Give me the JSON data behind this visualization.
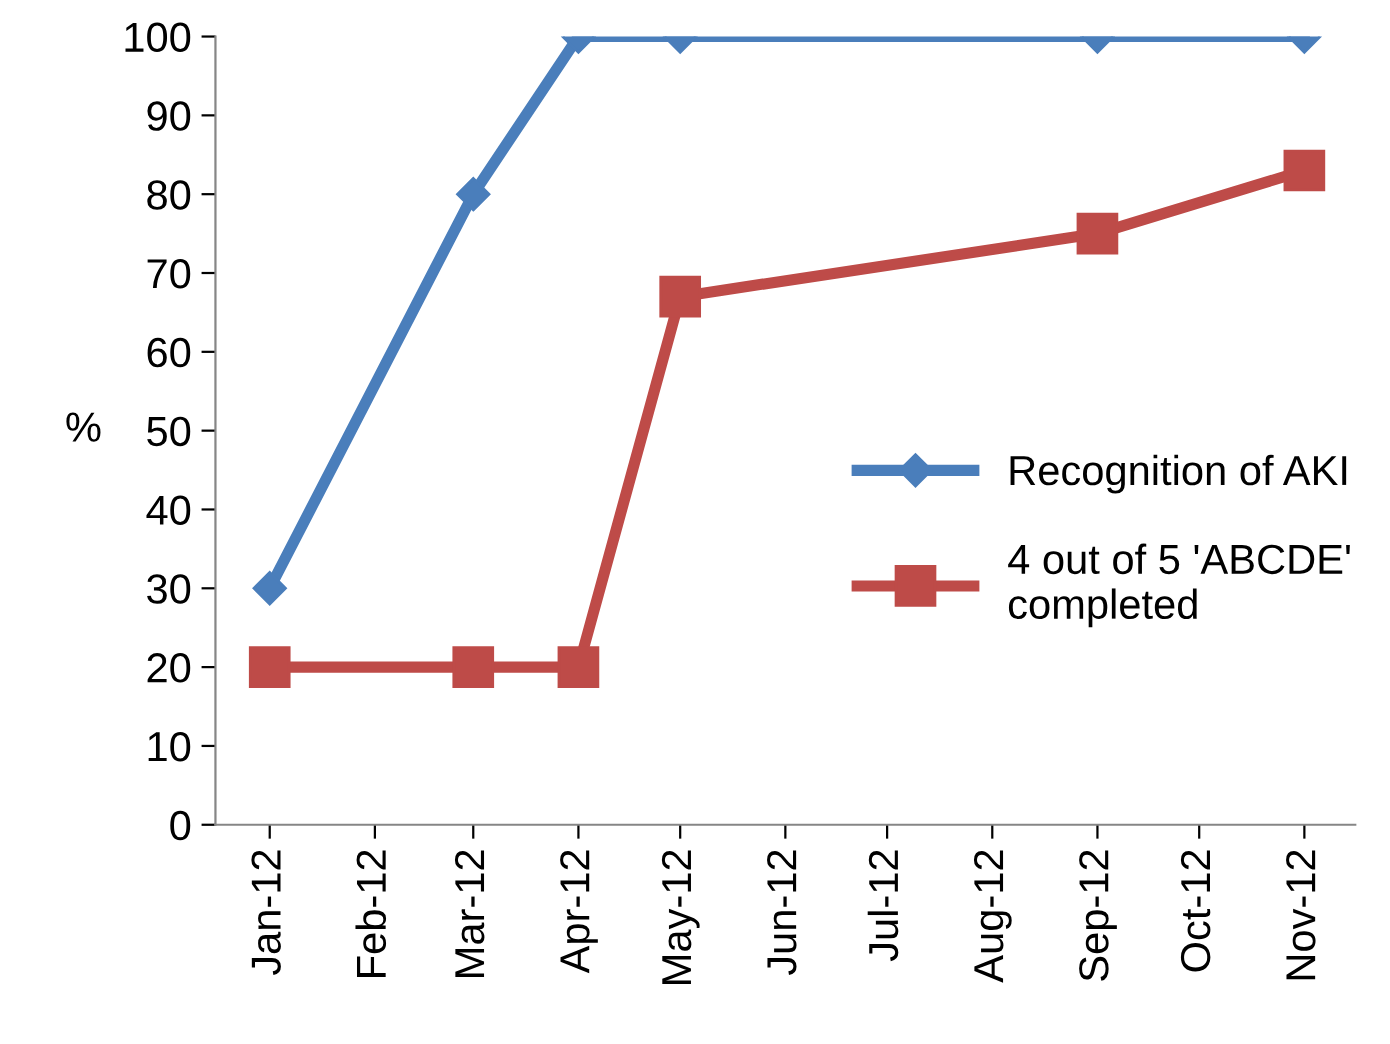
{
  "chart_data": {
    "type": "line",
    "ylabel": "%",
    "ylim": [
      0,
      100
    ],
    "yticks": [
      0,
      10,
      20,
      30,
      40,
      50,
      60,
      70,
      80,
      90,
      100
    ],
    "xlim": [
      "2011-12-16",
      "2012-11-16"
    ],
    "xticks": [
      {
        "value": "2012-01",
        "label": "Jan-12"
      },
      {
        "value": "2012-02",
        "label": "Feb-12"
      },
      {
        "value": "2012-03",
        "label": "Mar-12"
      },
      {
        "value": "2012-04",
        "label": "Apr-12"
      },
      {
        "value": "2012-05",
        "label": "May-12"
      },
      {
        "value": "2012-06",
        "label": "Jun-12"
      },
      {
        "value": "2012-07",
        "label": "Jul-12"
      },
      {
        "value": "2012-08",
        "label": "Aug-12"
      },
      {
        "value": "2012-09",
        "label": "Sep-12"
      },
      {
        "value": "2012-10",
        "label": "Oct-12"
      },
      {
        "value": "2012-11",
        "label": "Nov-12"
      }
    ],
    "series": [
      {
        "name": "Recognition of AKI",
        "color": "#4a7ebb",
        "marker": "diamond",
        "x": [
          "2012-01",
          "2012-03",
          "2012-04",
          "2012-05",
          "2012-09",
          "2012-11"
        ],
        "values": [
          30,
          80,
          100,
          100,
          100,
          100
        ]
      },
      {
        "name": "4 out of 5 'ABCDE' completed",
        "color": "#be4b48",
        "marker": "square",
        "x": [
          "2012-01",
          "2012-03",
          "2012-04",
          "2012-05",
          "2012-09",
          "2012-11"
        ],
        "values": [
          20,
          20,
          20,
          67,
          75,
          83
        ]
      }
    ],
    "grid": false,
    "legend": "right",
    "line_style": "solid"
  }
}
